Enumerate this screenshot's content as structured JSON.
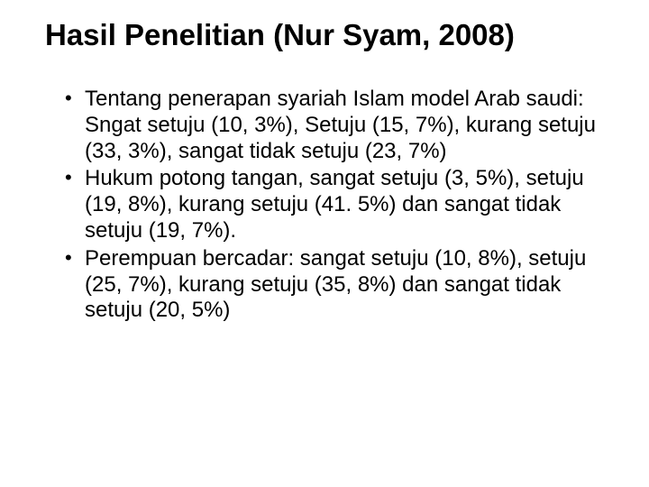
{
  "title": "Hasil Penelitian (Nur Syam, 2008)",
  "bullets": [
    "Tentang penerapan syariah Islam model Arab saudi: Sngat setuju (10, 3%), Setuju (15, 7%), kurang setuju (33, 3%), sangat tidak setuju (23, 7%)",
    "Hukum potong tangan, sangat setuju (3, 5%), setuju (19, 8%), kurang setuju (41. 5%) dan sangat tidak setuju (19, 7%).",
    "Perempuan bercadar: sangat setuju (10, 8%), setuju (25, 7%), kurang setuju (35, 8%) dan sangat tidak setuju (20, 5%)"
  ],
  "style": {
    "background_color": "#ffffff",
    "text_color": "#000000",
    "title_fontsize": 33,
    "title_weight": 700,
    "body_fontsize": 24,
    "font_family": "Arial"
  }
}
